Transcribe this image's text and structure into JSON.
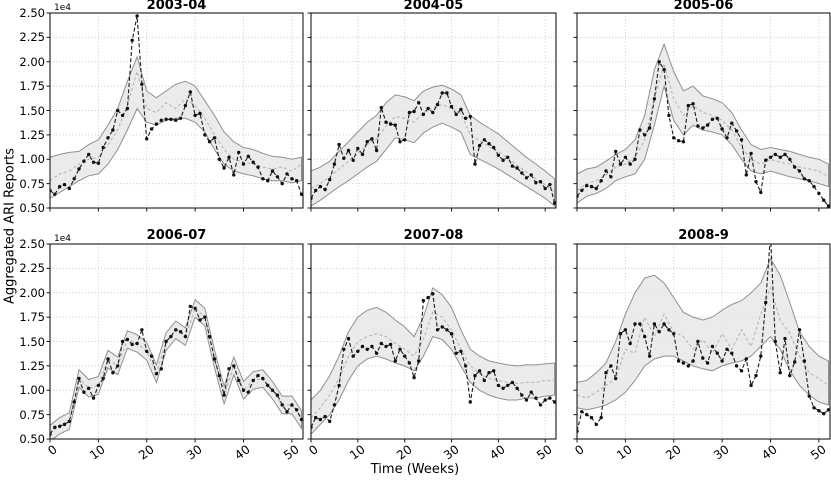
{
  "ylabel": "Aggregated ARI Reports",
  "xlabel": "Time (Weeks)",
  "offset_label": "1e4",
  "axis": {
    "x_ticks": [
      0,
      10,
      20,
      30,
      40,
      50
    ],
    "x_tick_labels": [
      "0",
      "10",
      "20",
      "30",
      "40",
      "50"
    ],
    "x_max": 52.3,
    "y_min": 0.5,
    "y_max": 2.5,
    "y_ticks": [
      0.5,
      0.75,
      1.0,
      1.25,
      1.5,
      1.75,
      2.0,
      2.25,
      2.5
    ],
    "y_tick_labels": [
      "0.50",
      "0.75",
      "1.00",
      "1.25",
      "1.50",
      "1.75",
      "2.00",
      "2.25",
      "2.50"
    ]
  },
  "colors": {
    "observed": "#1c1c1c",
    "forecast_median": "#b5b5b5",
    "band_fill": "#e7e7e7",
    "band_edge": "#909090",
    "grid": "#c8c8c8",
    "axis": "#1a1a1a",
    "text": "#000000"
  },
  "chart_data": {
    "type": "line",
    "layout": "2x3 small multiples, shared x and y axes",
    "title": "",
    "xlabel": "Time (Weeks)",
    "ylabel": "Aggregated ARI Reports",
    "y_unit_multiplier": "1e4",
    "xlim": [
      0,
      52.3
    ],
    "ylim": [
      0.5,
      2.5
    ],
    "grid": "dotted",
    "legend": "none",
    "series_style": {
      "observed": "black dashed line with dot markers",
      "forecast_median": "light gray dashed line",
      "band": "gray shaded uncertainty interval"
    },
    "band_weeks": [
      0,
      2,
      4,
      6,
      8,
      10,
      12,
      14,
      16,
      18,
      20,
      22,
      24,
      26,
      28,
      30,
      32,
      34,
      36,
      38,
      40,
      42,
      44,
      46,
      48,
      50,
      52
    ],
    "panels": [
      {
        "title": "2003-04",
        "observed": [
          0.68,
          0.64,
          0.72,
          0.74,
          0.7,
          0.8,
          0.9,
          0.98,
          1.05,
          0.97,
          0.96,
          1.12,
          1.22,
          1.3,
          1.5,
          1.45,
          1.52,
          2.22,
          2.47,
          1.77,
          1.21,
          1.31,
          1.36,
          1.4,
          1.41,
          1.41,
          1.4,
          1.42,
          1.55,
          1.69,
          1.45,
          1.47,
          1.25,
          1.18,
          1.22,
          1.0,
          0.91,
          1.02,
          0.84,
          1.07,
          0.95,
          1.03,
          0.97,
          0.92,
          0.8,
          0.78,
          0.88,
          0.82,
          0.75,
          0.85,
          0.8,
          0.78,
          0.64
        ],
        "median": [
          0.78,
          0.85,
          0.88,
          0.95,
          1.0,
          1.02,
          1.15,
          1.3,
          1.55,
          1.9,
          1.52,
          1.48,
          1.58,
          1.52,
          1.62,
          1.55,
          1.42,
          1.25,
          1.1,
          1.0,
          0.97,
          0.95,
          0.92,
          0.9,
          0.92,
          0.88,
          0.95
        ],
        "lower": [
          0.6,
          0.66,
          0.72,
          0.78,
          0.83,
          0.85,
          0.95,
          1.1,
          1.3,
          1.52,
          1.38,
          1.35,
          1.4,
          1.42,
          1.42,
          1.38,
          1.28,
          1.1,
          0.95,
          0.88,
          0.85,
          0.83,
          0.8,
          0.78,
          0.78,
          0.76,
          0.78
        ],
        "upper": [
          1.02,
          1.05,
          1.07,
          1.08,
          1.15,
          1.2,
          1.35,
          1.52,
          1.8,
          2.05,
          1.7,
          1.63,
          1.7,
          1.77,
          1.8,
          1.75,
          1.6,
          1.45,
          1.28,
          1.18,
          1.12,
          1.1,
          1.06,
          1.03,
          1.02,
          1.0,
          1.02
        ]
      },
      {
        "title": "2004-05",
        "observed": [
          0.6,
          0.68,
          0.72,
          0.69,
          0.79,
          0.95,
          1.15,
          1.01,
          1.09,
          0.99,
          1.11,
          1.05,
          1.18,
          1.21,
          1.09,
          1.53,
          1.38,
          1.36,
          1.35,
          1.18,
          1.2,
          1.48,
          1.49,
          1.58,
          1.46,
          1.52,
          1.48,
          1.56,
          1.68,
          1.68,
          1.54,
          1.46,
          1.51,
          1.42,
          1.44,
          0.95,
          1.14,
          1.2,
          1.16,
          1.12,
          1.04,
          0.99,
          1.02,
          0.93,
          0.91,
          0.86,
          0.81,
          0.84,
          0.76,
          0.77,
          0.7,
          0.74,
          0.55
        ],
        "median": [
          0.7,
          0.75,
          0.82,
          0.9,
          0.98,
          1.06,
          1.15,
          1.21,
          1.34,
          1.44,
          1.42,
          1.38,
          1.48,
          1.53,
          1.56,
          1.52,
          1.47,
          1.25,
          1.19,
          1.13,
          1.08,
          1.01,
          0.94,
          0.87,
          0.8,
          0.74,
          0.66
        ],
        "lower": [
          0.52,
          0.58,
          0.65,
          0.72,
          0.78,
          0.85,
          0.92,
          0.98,
          1.1,
          1.22,
          1.2,
          1.17,
          1.27,
          1.33,
          1.37,
          1.33,
          1.28,
          1.05,
          1.0,
          0.95,
          0.9,
          0.84,
          0.78,
          0.72,
          0.66,
          0.6,
          0.52
        ],
        "upper": [
          0.88,
          0.92,
          0.98,
          1.08,
          1.18,
          1.28,
          1.38,
          1.45,
          1.58,
          1.66,
          1.64,
          1.6,
          1.7,
          1.74,
          1.76,
          1.72,
          1.66,
          1.45,
          1.38,
          1.32,
          1.26,
          1.18,
          1.1,
          1.02,
          0.95,
          0.88,
          0.8
        ]
      },
      {
        "title": "2005-06",
        "observed": [
          0.62,
          0.68,
          0.73,
          0.72,
          0.7,
          0.78,
          0.88,
          0.82,
          1.08,
          0.95,
          1.02,
          0.95,
          1.0,
          1.3,
          1.25,
          1.32,
          1.62,
          2.0,
          1.92,
          1.45,
          1.22,
          1.19,
          1.18,
          1.55,
          1.57,
          1.34,
          1.32,
          1.35,
          1.41,
          1.42,
          1.31,
          1.22,
          1.37,
          1.29,
          1.2,
          0.84,
          1.06,
          0.77,
          0.66,
          0.99,
          1.02,
          1.05,
          1.02,
          1.05,
          1.0,
          0.92,
          0.88,
          0.8,
          0.78,
          0.72,
          0.65,
          0.58,
          0.52
        ],
        "median": [
          0.68,
          0.75,
          0.78,
          0.84,
          0.92,
          0.95,
          1.02,
          1.2,
          1.62,
          1.98,
          1.62,
          1.45,
          1.55,
          1.48,
          1.45,
          1.4,
          1.3,
          1.12,
          1.0,
          0.95,
          1.0,
          0.97,
          0.95,
          0.92,
          0.9,
          0.88,
          0.82
        ],
        "lower": [
          0.55,
          0.62,
          0.65,
          0.7,
          0.78,
          0.82,
          0.85,
          1.0,
          1.35,
          1.75,
          1.4,
          1.25,
          1.35,
          1.3,
          1.28,
          1.25,
          1.15,
          1.0,
          0.88,
          0.85,
          0.88,
          0.85,
          0.82,
          0.8,
          0.78,
          0.75,
          0.72
        ],
        "upper": [
          0.85,
          0.9,
          0.92,
          0.98,
          1.05,
          1.1,
          1.2,
          1.45,
          1.92,
          2.18,
          1.9,
          1.7,
          1.75,
          1.65,
          1.62,
          1.58,
          1.48,
          1.3,
          1.15,
          1.1,
          1.12,
          1.1,
          1.08,
          1.05,
          1.02,
          1.0,
          0.95
        ]
      },
      {
        "title": "2006-07",
        "observed": [
          0.55,
          0.62,
          0.63,
          0.65,
          0.68,
          0.88,
          1.12,
          0.98,
          1.02,
          0.92,
          1.05,
          1.12,
          1.32,
          1.18,
          1.25,
          1.5,
          1.52,
          1.47,
          1.48,
          1.62,
          1.4,
          1.35,
          1.17,
          1.22,
          1.5,
          1.55,
          1.62,
          1.6,
          1.55,
          1.86,
          1.84,
          1.72,
          1.75,
          1.55,
          1.32,
          1.15,
          0.95,
          1.22,
          1.25,
          1.1,
          1.0,
          0.98,
          1.1,
          1.15,
          1.12,
          1.05,
          1.0,
          0.95,
          0.85,
          0.78,
          0.85,
          0.8,
          0.7
        ],
        "median": [
          0.56,
          0.64,
          0.69,
          1.12,
          1.02,
          1.05,
          1.32,
          1.25,
          1.52,
          1.48,
          1.4,
          1.17,
          1.5,
          1.62,
          1.55,
          1.84,
          1.75,
          1.32,
          0.95,
          1.25,
          1.0,
          1.1,
          1.12,
          1.0,
          0.85,
          0.85,
          0.7
        ],
        "lower": [
          0.48,
          0.55,
          0.6,
          1.03,
          0.93,
          0.96,
          1.23,
          1.16,
          1.43,
          1.39,
          1.31,
          1.08,
          1.41,
          1.53,
          1.46,
          1.75,
          1.66,
          1.23,
          0.86,
          1.16,
          0.91,
          1.01,
          1.03,
          0.91,
          0.76,
          0.76,
          0.61
        ],
        "upper": [
          0.64,
          0.72,
          0.77,
          1.21,
          1.11,
          1.14,
          1.41,
          1.34,
          1.61,
          1.57,
          1.49,
          1.26,
          1.59,
          1.71,
          1.64,
          1.93,
          1.84,
          1.41,
          1.04,
          1.34,
          1.09,
          1.19,
          1.21,
          1.09,
          0.94,
          0.94,
          0.79
        ]
      },
      {
        "title": "2007-08",
        "observed": [
          0.62,
          0.72,
          0.7,
          0.73,
          0.68,
          0.85,
          1.05,
          1.42,
          1.53,
          1.35,
          1.4,
          1.45,
          1.42,
          1.45,
          1.38,
          1.48,
          1.45,
          1.47,
          1.3,
          1.42,
          1.35,
          1.28,
          1.13,
          1.3,
          1.92,
          1.95,
          1.99,
          1.62,
          1.65,
          1.62,
          1.58,
          1.38,
          1.4,
          1.25,
          0.88,
          1.15,
          1.2,
          1.1,
          1.18,
          1.2,
          1.05,
          1.02,
          1.05,
          1.08,
          1.02,
          0.95,
          0.9,
          0.98,
          0.92,
          0.85,
          0.9,
          0.92,
          0.88
        ],
        "median": [
          0.72,
          0.82,
          0.95,
          1.12,
          1.35,
          1.5,
          1.55,
          1.58,
          1.55,
          1.48,
          1.42,
          1.35,
          1.52,
          1.8,
          1.75,
          1.62,
          1.42,
          1.25,
          1.17,
          1.12,
          1.1,
          1.08,
          1.07,
          1.08,
          1.08,
          1.1,
          1.1
        ],
        "lower": [
          0.55,
          0.65,
          0.75,
          0.9,
          1.1,
          1.25,
          1.32,
          1.35,
          1.32,
          1.28,
          1.25,
          1.2,
          1.35,
          1.55,
          1.52,
          1.42,
          1.25,
          1.08,
          1.0,
          0.95,
          0.92,
          0.9,
          0.9,
          0.92,
          0.92,
          0.94,
          0.95
        ],
        "upper": [
          0.9,
          1.0,
          1.15,
          1.35,
          1.6,
          1.75,
          1.82,
          1.85,
          1.8,
          1.72,
          1.65,
          1.55,
          1.75,
          2.05,
          1.98,
          1.85,
          1.62,
          1.42,
          1.35,
          1.3,
          1.28,
          1.26,
          1.25,
          1.26,
          1.26,
          1.27,
          1.28
        ]
      },
      {
        "title": "2008-9",
        "observed": [
          0.58,
          0.78,
          0.75,
          0.72,
          0.65,
          0.72,
          1.18,
          1.25,
          1.12,
          1.58,
          1.62,
          1.48,
          1.68,
          1.68,
          1.55,
          1.35,
          1.68,
          1.6,
          1.68,
          1.62,
          1.58,
          1.3,
          1.28,
          1.25,
          1.3,
          1.5,
          1.33,
          1.28,
          1.45,
          1.38,
          1.3,
          1.42,
          1.38,
          1.25,
          1.2,
          1.32,
          1.05,
          1.15,
          1.35,
          1.9,
          2.6,
          1.5,
          1.18,
          1.53,
          1.15,
          1.29,
          1.62,
          1.3,
          0.94,
          0.82,
          0.79,
          0.76,
          0.8
        ],
        "median": [
          0.95,
          0.92,
          0.98,
          1.05,
          1.12,
          1.42,
          1.38,
          1.75,
          1.55,
          1.78,
          1.6,
          1.55,
          1.42,
          1.52,
          1.38,
          1.58,
          1.42,
          1.62,
          1.45,
          1.78,
          2.05,
          1.72,
          1.58,
          1.35,
          1.18,
          1.12,
          1.05
        ],
        "lower": [
          0.82,
          0.8,
          0.82,
          0.85,
          0.9,
          0.98,
          1.1,
          1.25,
          1.32,
          1.35,
          1.35,
          1.3,
          1.25,
          1.22,
          1.2,
          1.25,
          1.28,
          1.3,
          1.35,
          1.45,
          1.55,
          1.42,
          1.2,
          1.05,
          0.95,
          0.88,
          0.85
        ],
        "upper": [
          1.08,
          1.1,
          1.18,
          1.28,
          1.5,
          1.78,
          2.0,
          2.15,
          2.18,
          2.1,
          1.95,
          1.8,
          1.75,
          1.72,
          1.75,
          1.82,
          1.88,
          1.92,
          2.0,
          2.1,
          2.35,
          2.18,
          1.9,
          1.6,
          1.45,
          1.35,
          1.3
        ]
      }
    ]
  }
}
